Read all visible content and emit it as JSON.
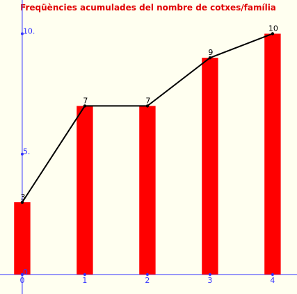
{
  "chart_data": {
    "type": "bar",
    "title": "Freqüències acumulades del nombre de cotxes/família",
    "x": [
      0,
      1,
      2,
      3,
      4
    ],
    "values": [
      3,
      7,
      7,
      9,
      10
    ],
    "color": "#ff0000",
    "line_color": "#000000",
    "axis_color": "#3333ff",
    "xlim": [
      -0.355,
      4.39
    ],
    "ylim": [
      -0.81,
      11.4
    ],
    "xticks": [
      0,
      1,
      2,
      3,
      4
    ],
    "yticks": [
      0,
      {
        "value": 5,
        "label": "5."
      },
      {
        "value": 10,
        "label": "10."
      }
    ]
  }
}
